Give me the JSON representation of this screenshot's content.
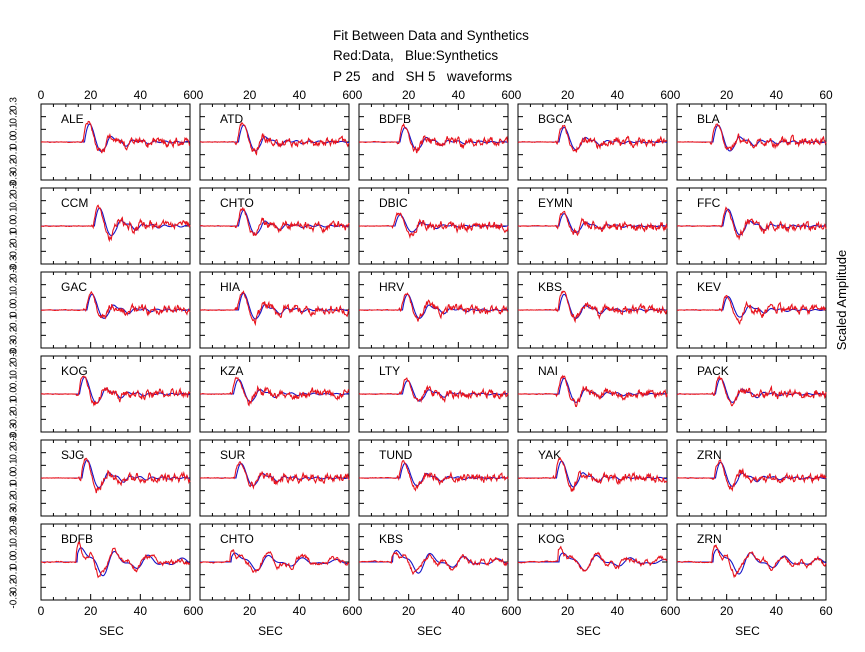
{
  "title_lines": [
    "Fit Between Data and Synthetics",
    "Red:Data,   Blue:Synthetics",
    "P 25   and   SH 5   waveforms"
  ],
  "right_label": "Scaled Amplitude",
  "colors": {
    "data": "#e8141e",
    "synthetic": "#1515c8",
    "frame": "#000000"
  },
  "chart_data": {
    "type": "line",
    "layout": "grid 6 rows x 5 columns of waveform panels",
    "xlabel": "SEC",
    "xlim": [
      0,
      60
    ],
    "xticks": [
      "0",
      "20",
      "40",
      "60"
    ],
    "ylim": [
      -0.3,
      0.3
    ],
    "yticks": [
      "0.3",
      "0.2",
      "0.1",
      "0.0",
      "-0.1",
      "-0.2",
      "-0.3"
    ],
    "series_legend": {
      "data": "Red:Data",
      "synthetic": "Blue:Synthetics"
    },
    "stations": [
      [
        "ALE",
        "ATD",
        "BDFB",
        "BGCA",
        "BLA"
      ],
      [
        "CCM",
        "CHTO",
        "DBIC",
        "EYMN",
        "FFC"
      ],
      [
        "GAC",
        "HIA",
        "HRV",
        "KBS",
        "KEV"
      ],
      [
        "KOG",
        "KZA",
        "LTY",
        "NAI",
        "PACK"
      ],
      [
        "SJG",
        "SUR",
        "TUND",
        "YAK",
        "ZRN"
      ],
      [
        "BDFB",
        "CHTO",
        "KBS",
        "KOG",
        "ZRN"
      ]
    ],
    "wave_type_by_row": [
      "P",
      "P",
      "P",
      "P",
      "P",
      "SH"
    ],
    "onset_sec": [
      [
        17,
        15,
        16,
        16,
        14
      ],
      [
        21,
        15,
        14,
        16,
        18
      ],
      [
        18,
        15,
        17,
        16,
        18
      ],
      [
        15,
        13,
        17,
        16,
        15
      ],
      [
        16,
        14,
        16,
        15,
        15
      ],
      [
        14,
        12,
        13,
        16,
        14
      ]
    ],
    "peak_amplitude": [
      [
        0.16,
        0.15,
        0.13,
        0.13,
        0.15
      ],
      [
        0.16,
        0.14,
        0.1,
        0.11,
        0.15
      ],
      [
        0.14,
        0.15,
        0.14,
        0.14,
        0.12
      ],
      [
        0.15,
        0.13,
        0.12,
        0.14,
        0.14
      ],
      [
        0.16,
        0.13,
        0.13,
        0.15,
        0.14
      ],
      [
        0.16,
        0.1,
        0.13,
        0.1,
        0.14
      ]
    ]
  }
}
